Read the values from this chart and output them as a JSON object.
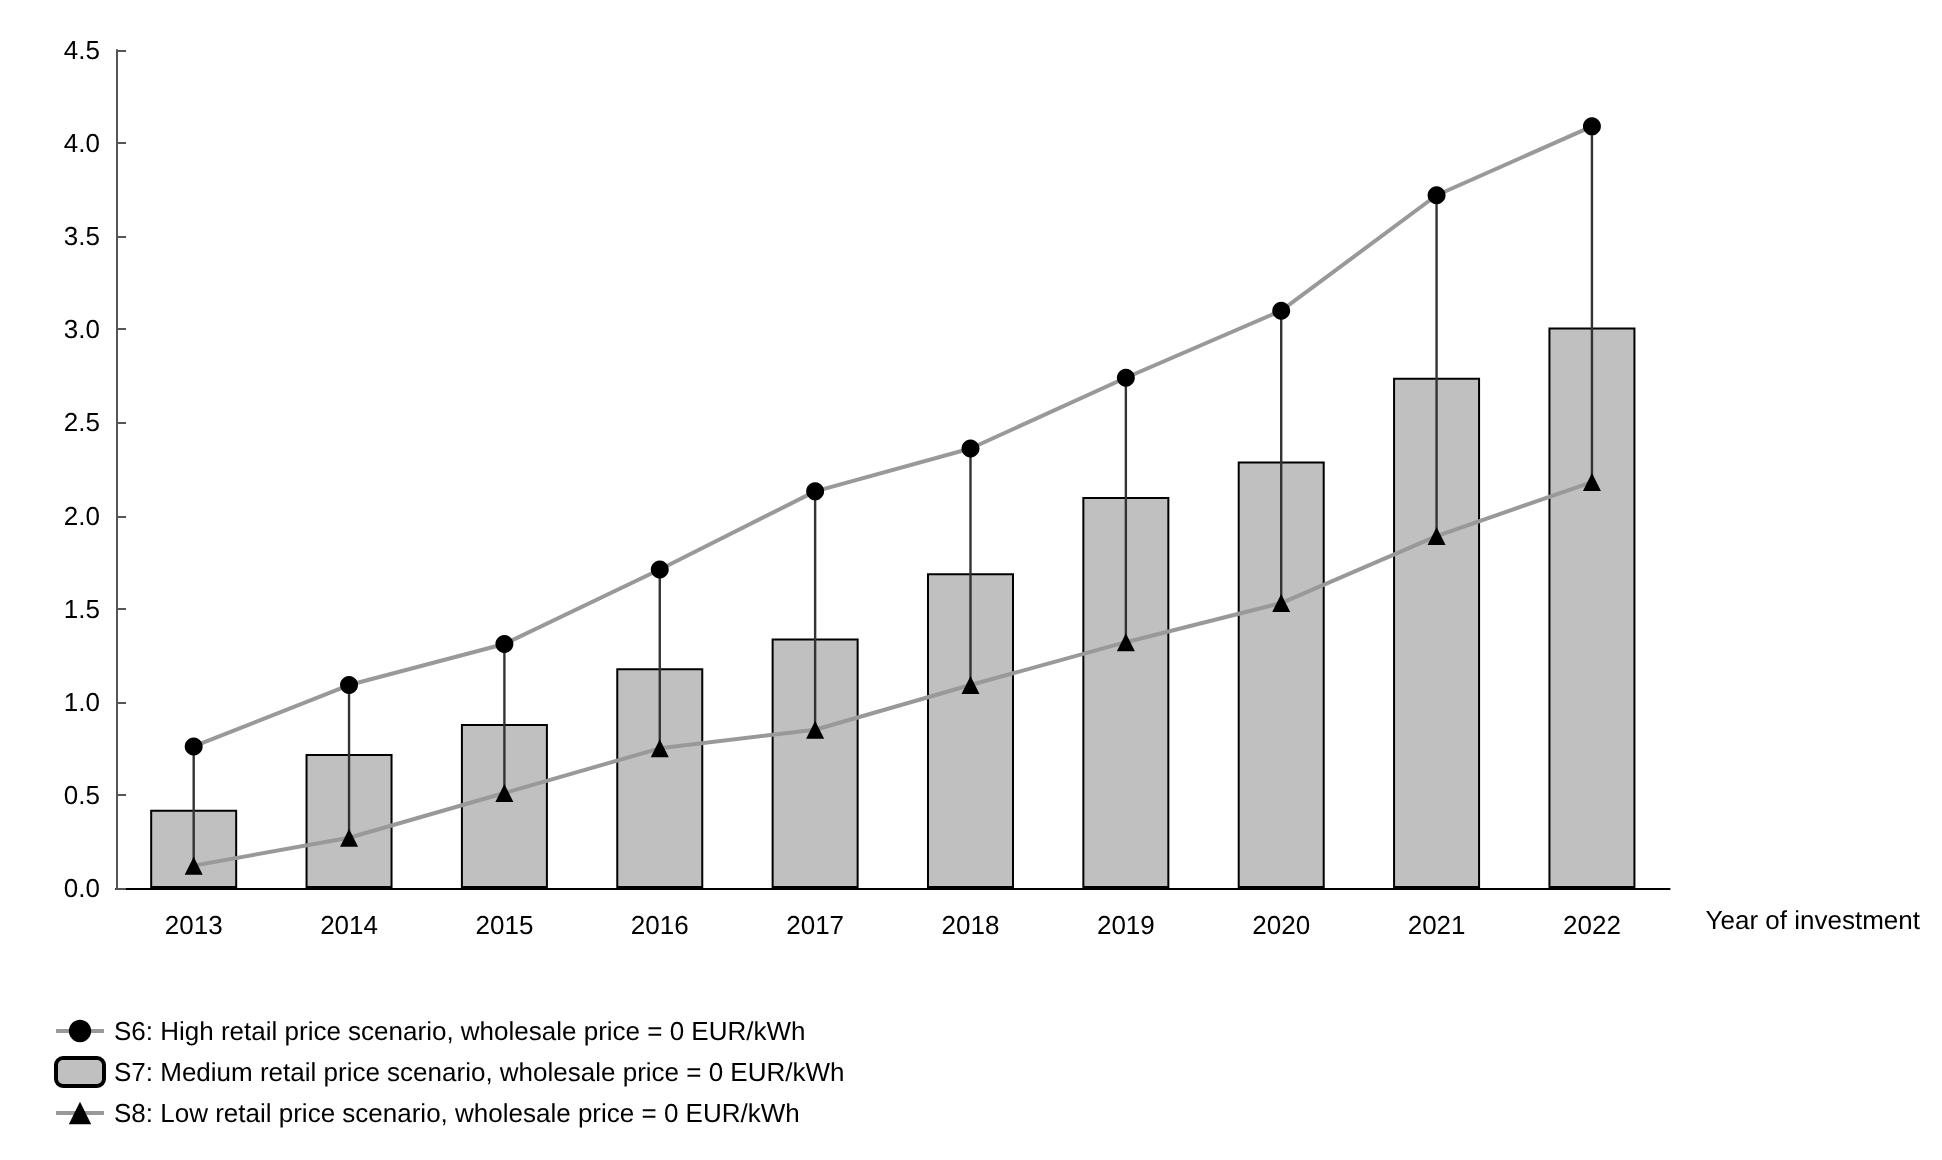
{
  "chart_data": {
    "type": "bar",
    "xlabel": "Year of investment",
    "categories": [
      "2013",
      "2014",
      "2015",
      "2016",
      "2017",
      "2018",
      "2019",
      "2020",
      "2021",
      "2022"
    ],
    "series": [
      {
        "name": "S6: High retail price scenario, wholesale price = 0 EUR/kWh",
        "type": "line",
        "color": "#999999",
        "marker": "circle",
        "values": [
          0.76,
          1.09,
          1.31,
          1.71,
          2.13,
          2.36,
          2.74,
          3.1,
          3.72,
          4.09
        ]
      },
      {
        "name": "S7: Medium retail price scenario, wholesale price = 0 EUR/kWh",
        "color": "#c0c0c0",
        "values": [
          0.42,
          0.72,
          0.88,
          1.18,
          1.34,
          1.69,
          2.1,
          2.29,
          2.74,
          3.01
        ],
        "errors": [
          [
            0.12,
            0.76
          ],
          [
            0.27,
            1.09
          ],
          [
            0.51,
            1.31
          ],
          [
            0.75,
            1.71
          ],
          [
            0.85,
            2.13
          ],
          [
            1.09,
            2.36
          ],
          [
            1.32,
            2.74
          ],
          [
            1.53,
            3.1
          ],
          [
            1.89,
            3.72
          ],
          [
            2.18,
            4.09
          ]
        ]
      },
      {
        "name": "S8: Low retail price scenario, wholesale price = 0 EUR/kWh",
        "type": "line",
        "color": "#999999",
        "marker": "triangle",
        "values": [
          0.12,
          0.27,
          0.51,
          0.75,
          0.85,
          1.09,
          1.32,
          1.53,
          1.89,
          2.18
        ]
      }
    ],
    "ylim": [
      0,
      4.5
    ],
    "yticks": [
      {
        "value": 0,
        "label": "0.0"
      },
      0.5,
      {
        "value": 1,
        "label": "1.0"
      },
      1.5,
      {
        "value": 2,
        "label": "2.0"
      },
      2.5,
      {
        "value": 3,
        "label": "3.0"
      },
      3.5,
      {
        "value": 4,
        "label": "4.0"
      },
      4.5
    ],
    "grid": false,
    "legend": "bottom left"
  }
}
